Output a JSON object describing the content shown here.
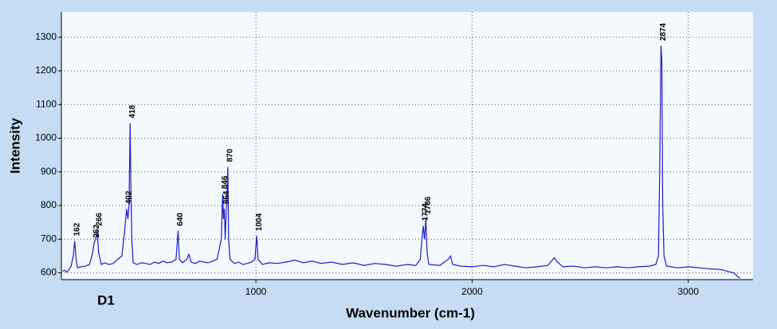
{
  "chart_data": {
    "type": "line",
    "y_label": "Intensity",
    "x_label": "Wavenumber (cm-1)",
    "sample_label": "D1",
    "xlim": [
      100,
      3300
    ],
    "ylim": [
      580,
      1375
    ],
    "xticks": [
      1000,
      2000,
      3000
    ],
    "yticks": [
      600,
      700,
      800,
      900,
      1000,
      1100,
      1200,
      1300
    ],
    "grid": true,
    "x": [
      105,
      115,
      125,
      135,
      145,
      155,
      162,
      168,
      175,
      190,
      210,
      230,
      245,
      252,
      258,
      266,
      272,
      285,
      300,
      320,
      340,
      360,
      380,
      392,
      402,
      408,
      413,
      418,
      422,
      426,
      432,
      450,
      470,
      490,
      510,
      530,
      550,
      570,
      590,
      610,
      630,
      640,
      646,
      660,
      680,
      690,
      700,
      720,
      740,
      760,
      780,
      800,
      820,
      840,
      846,
      850,
      854,
      858,
      864,
      870,
      874,
      880,
      900,
      920,
      940,
      960,
      980,
      995,
      1004,
      1010,
      1030,
      1060,
      1100,
      1140,
      1180,
      1220,
      1260,
      1300,
      1350,
      1400,
      1450,
      1500,
      1550,
      1600,
      1650,
      1700,
      1740,
      1760,
      1774,
      1780,
      1786,
      1792,
      1800,
      1850,
      1890,
      1900,
      1910,
      1950,
      2000,
      2050,
      2100,
      2150,
      2200,
      2250,
      2300,
      2350,
      2380,
      2390,
      2420,
      2470,
      2520,
      2570,
      2620,
      2670,
      2720,
      2770,
      2820,
      2850,
      2862,
      2868,
      2874,
      2878,
      2882,
      2888,
      2900,
      2950,
      3000,
      3050,
      3100,
      3150,
      3180,
      3210,
      3230,
      3240
    ],
    "series": [
      {
        "color": "#1c1cc8",
        "values": [
          605,
          608,
          602,
          610,
          620,
          650,
          695,
          640,
          615,
          618,
          620,
          625,
          660,
          690,
          700,
          725,
          660,
          625,
          630,
          625,
          628,
          640,
          650,
          720,
          790,
          760,
          800,
          1045,
          850,
          700,
          630,
          625,
          630,
          628,
          625,
          632,
          628,
          635,
          630,
          632,
          640,
          725,
          640,
          630,
          640,
          655,
          632,
          628,
          635,
          632,
          630,
          635,
          640,
          700,
          835,
          760,
          790,
          700,
          800,
          915,
          700,
          640,
          628,
          632,
          625,
          628,
          632,
          640,
          710,
          640,
          625,
          630,
          628,
          632,
          638,
          630,
          635,
          628,
          632,
          625,
          630,
          622,
          628,
          625,
          620,
          625,
          622,
          640,
          740,
          700,
          760,
          660,
          625,
          622,
          640,
          650,
          625,
          620,
          618,
          622,
          618,
          625,
          620,
          615,
          618,
          622,
          645,
          635,
          618,
          620,
          615,
          618,
          615,
          618,
          615,
          618,
          620,
          625,
          650,
          900,
          1275,
          1230,
          800,
          650,
          620,
          615,
          618,
          615,
          612,
          610,
          605,
          600,
          588,
          585
        ]
      }
    ],
    "peak_labels": [
      162,
      252,
      266,
      402,
      418,
      640,
      846,
      854,
      870,
      1004,
      1774,
      1786,
      2874
    ]
  }
}
